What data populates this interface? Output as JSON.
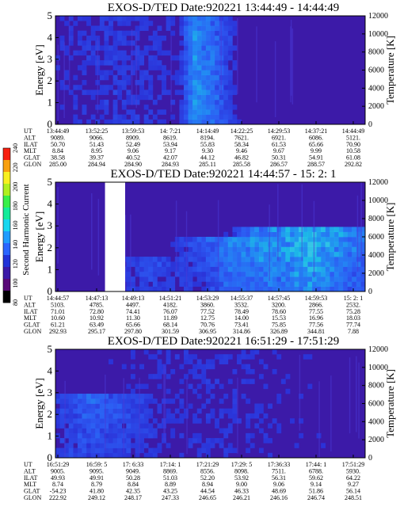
{
  "colorbar": {
    "label": "Second Harmonic Current",
    "ticks": [
      80,
      100,
      120,
      140,
      160,
      180,
      200,
      220,
      240
    ],
    "colors": [
      "#000000",
      "#5a0a78",
      "#3c1aa8",
      "#2233d8",
      "#2a66ff",
      "#1f9cff",
      "#18d7f0",
      "#14ec9a",
      "#38f04a",
      "#b0f020",
      "#f8f020",
      "#f8a010",
      "#f82010"
    ]
  },
  "chart_data": [
    {
      "type": "heatmap",
      "title": "EXOS-D/TED",
      "date": "Date:920221",
      "time_range": "13:44:49 - 14:44:49",
      "ylabel": "Energy [eV]",
      "y2label": "Temperature [K]",
      "ylim": [
        0,
        5
      ],
      "y2lim": [
        0,
        12000
      ],
      "yticks": [
        "0",
        "1",
        "2",
        "3",
        "4",
        "5"
      ],
      "y2ticks": [
        "0",
        "2000",
        "4000",
        "6000",
        "8000",
        "10000",
        "12000"
      ],
      "background": "#3c1aa8",
      "features": [
        {
          "x": 0.5,
          "w": 0.1,
          "intensity": 0.35
        },
        {
          "x": 0.45,
          "w": 0.05,
          "intensity": 0.3
        },
        {
          "x": 0.2,
          "w": 0.4,
          "intensity": 0.12
        }
      ],
      "orbit": {
        "labels": [
          "UT",
          "ALT",
          "ILAT",
          "MLT",
          "GLAT",
          "GLON"
        ],
        "columns": [
          [
            "13:44:49",
            "9089.",
            "50.70",
            "8.84",
            "38.58",
            "285.00"
          ],
          [
            "13:52:25",
            "9066.",
            "51.43",
            "8.95",
            "39.37",
            "284.94"
          ],
          [
            "13:59:53",
            "8909.",
            "52.49",
            "9.06",
            "40.52",
            "284.90"
          ],
          [
            "14: 7:21",
            "8619.",
            "53.94",
            "9.17",
            "42.07",
            "284.93"
          ],
          [
            "14:14:49",
            "8194.",
            "55.83",
            "9.30",
            "44.12",
            "285.11"
          ],
          [
            "14:22:25",
            "7621.",
            "58.34",
            "9.46",
            "46.82",
            "285.58"
          ],
          [
            "14:29:53",
            "6921.",
            "61.53",
            "9.67",
            "50.31",
            "286.57"
          ],
          [
            "14:37:21",
            "6086.",
            "65.66",
            "9.99",
            "54.91",
            "288.57"
          ],
          [
            "14:44:49",
            "5121.",
            "70.90",
            "10.58",
            "61.08",
            "292.82"
          ]
        ]
      }
    },
    {
      "type": "heatmap",
      "title": "EXOS-D/TED",
      "date": "Date:920221",
      "time_range": "14:44:57 - 15: 2: 1",
      "ylabel": "Energy [eV]",
      "y2label": "Temperature [K]",
      "ylim": [
        0,
        5
      ],
      "y2lim": [
        0,
        12000
      ],
      "yticks": [
        "0",
        "1",
        "2",
        "3",
        "4",
        "5"
      ],
      "y2ticks": [
        "0",
        "2000",
        "4000",
        "6000",
        "8000",
        "10000",
        "12000"
      ],
      "background": "#3c1aa8",
      "gap": [
        0.16,
        0.225
      ],
      "features": [
        {
          "x": 0.82,
          "w": 0.3,
          "intensity": 0.85,
          "ymax": 2.9
        },
        {
          "x": 0.55,
          "w": 0.2,
          "intensity": 0.4,
          "ymax": 2.5
        },
        {
          "x": 0.3,
          "w": 0.15,
          "intensity": 0.25,
          "ymax": 1.5
        }
      ],
      "orbit": {
        "labels": [
          "UT",
          "ALT",
          "ILAT",
          "MLT",
          "GLAT",
          "GLON"
        ],
        "columns": [
          [
            "14:44:57",
            "5103.",
            "71.01",
            "10.60",
            "61.21",
            "292.93"
          ],
          [
            "14:47:13",
            "4785.",
            "72.80",
            "10.92",
            "63.49",
            "295.17"
          ],
          [
            "14:49:13",
            "4497.",
            "74.41",
            "11.30",
            "65.66",
            "297.80"
          ],
          [
            "14:51:21",
            "4182.",
            "76.07",
            "11.89",
            "68.14",
            "301.59"
          ],
          [
            "14:53:29",
            "3860.",
            "77.52",
            "12.75",
            "70.76",
            "306.95"
          ],
          [
            "14:55:37",
            "3532.",
            "78.49",
            "14.00",
            "73.41",
            "314.86"
          ],
          [
            "14:57:45",
            "3200.",
            "78.60",
            "15.53",
            "75.85",
            "326.89"
          ],
          [
            "14:59:53",
            "2866.",
            "77.55",
            "16.96",
            "77.56",
            "344.81"
          ],
          [
            "15: 2: 1",
            "2532.",
            "75.28",
            "18.03",
            "77.74",
            "7.88"
          ]
        ]
      }
    },
    {
      "type": "heatmap",
      "title": "EXOS-D/TED",
      "date": "Date:920221",
      "time_range": "16:51:29 - 17:51:29",
      "ylabel": "Energy [eV]",
      "y2label": "Temperature [K]",
      "ylim": [
        0,
        5
      ],
      "y2lim": [
        0,
        12000
      ],
      "yticks": [
        "0",
        "1",
        "2",
        "3",
        "4",
        "5"
      ],
      "y2ticks": [
        "0",
        "2000",
        "4000",
        "6000",
        "8000",
        "10000",
        "12000"
      ],
      "background": "#3c1aa8",
      "features": [
        {
          "x": 0.12,
          "w": 0.25,
          "intensity": 0.3,
          "ymax": 3.0
        },
        {
          "x": 0.5,
          "w": 0.5,
          "intensity": 0.08
        }
      ],
      "orbit": {
        "labels": [
          "UT",
          "ALT",
          "ILAT",
          "MLT",
          "GLAT",
          "GLON"
        ],
        "columns": [
          [
            "16:51:29",
            "9005.",
            "49.93",
            "8.74",
            "-54.23",
            "222.92"
          ],
          [
            "16:59: 5",
            "9095.",
            "49.91",
            "8.79",
            "41.80",
            "249.12"
          ],
          [
            "17: 6:33",
            "9049.",
            "50.28",
            "8.84",
            "42.35",
            "248.17"
          ],
          [
            "17:14: 1",
            "8869.",
            "51.03",
            "8.89",
            "43.25",
            "247.33"
          ],
          [
            "17:21:29",
            "8556.",
            "52.20",
            "8.94",
            "44.54",
            "246.65"
          ],
          [
            "17:29: 5",
            "8098.",
            "53.92",
            "9.00",
            "46.33",
            "246.21"
          ],
          [
            "17:36:33",
            "7511.",
            "56.31",
            "9.06",
            "48.69",
            "246.16"
          ],
          [
            "17:44: 1",
            "6788.",
            "59.62",
            "9.14",
            "51.86",
            "246.74"
          ],
          [
            "17:51:29",
            "5930.",
            "64.22",
            "9.27",
            "56.14",
            "248.51"
          ]
        ]
      }
    }
  ]
}
